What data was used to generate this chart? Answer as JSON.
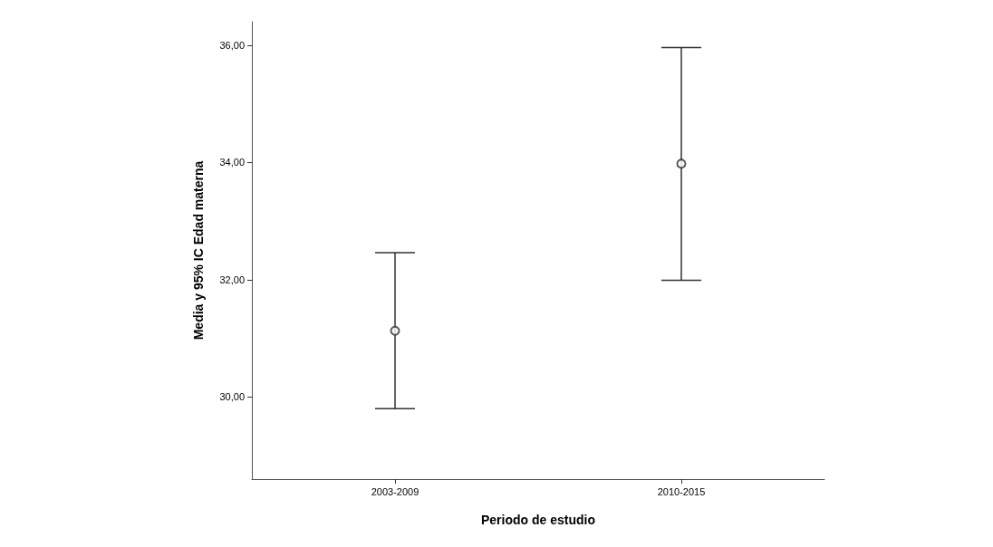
{
  "chart_data": {
    "type": "scatter",
    "xlabel": "Periodo de estudio",
    "ylabel": "Media y 95% IC Edad materna",
    "categories": [
      "2003-2009",
      "2010-2015"
    ],
    "values": [
      31.13,
      33.98
    ],
    "errors": [
      [
        29.8,
        32.46
      ],
      [
        31.99,
        35.96
      ]
    ],
    "color": "#333333",
    "marker": "circle",
    "ylim": [
      28.6,
      36.4
    ],
    "yticks": [
      {
        "value": 30,
        "label": "30,00"
      },
      {
        "value": 32,
        "label": "32,00"
      },
      {
        "value": 34,
        "label": "34,00"
      },
      {
        "value": 36,
        "label": "36,00"
      }
    ],
    "grid": false
  }
}
